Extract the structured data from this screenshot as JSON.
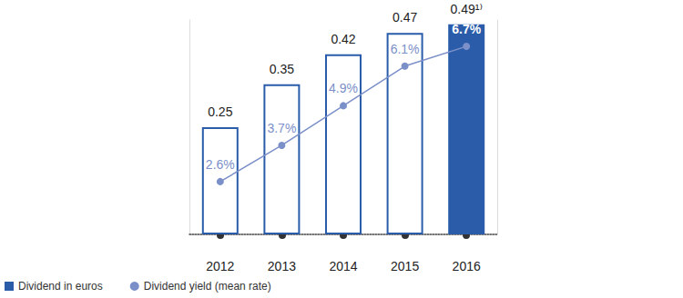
{
  "chart_data": {
    "type": "bar",
    "categories": [
      "2012",
      "2013",
      "2014",
      "2015",
      "2016"
    ],
    "series": [
      {
        "name": "Dividend in euros",
        "type": "bar",
        "color": "#2a5caa",
        "colors": [
          "#ffffff",
          "#ffffff",
          "#ffffff",
          "#ffffff",
          "#2a5caa"
        ],
        "values": [
          0.25,
          0.35,
          0.42,
          0.47,
          0.49
        ],
        "value_labels": [
          "0.25",
          "0.35",
          "0.42",
          "0.47",
          "0.49¹⁾"
        ]
      },
      {
        "name": "Dividend yield (mean rate)",
        "type": "line",
        "axis": "y2",
        "color": "#7b8fc8",
        "marker": "circle",
        "values": [
          2.6,
          3.7,
          4.9,
          6.1,
          6.7
        ],
        "value_labels": [
          "2.6%",
          "3.7%",
          "4.9%",
          "6.1%",
          "6.7%"
        ]
      }
    ],
    "ylim": [
      0,
      0.5
    ],
    "y2lim": [
      1,
      7.5
    ],
    "legend": "bottom-left",
    "data_labels": true,
    "tick_labels": false,
    "grid": false
  }
}
